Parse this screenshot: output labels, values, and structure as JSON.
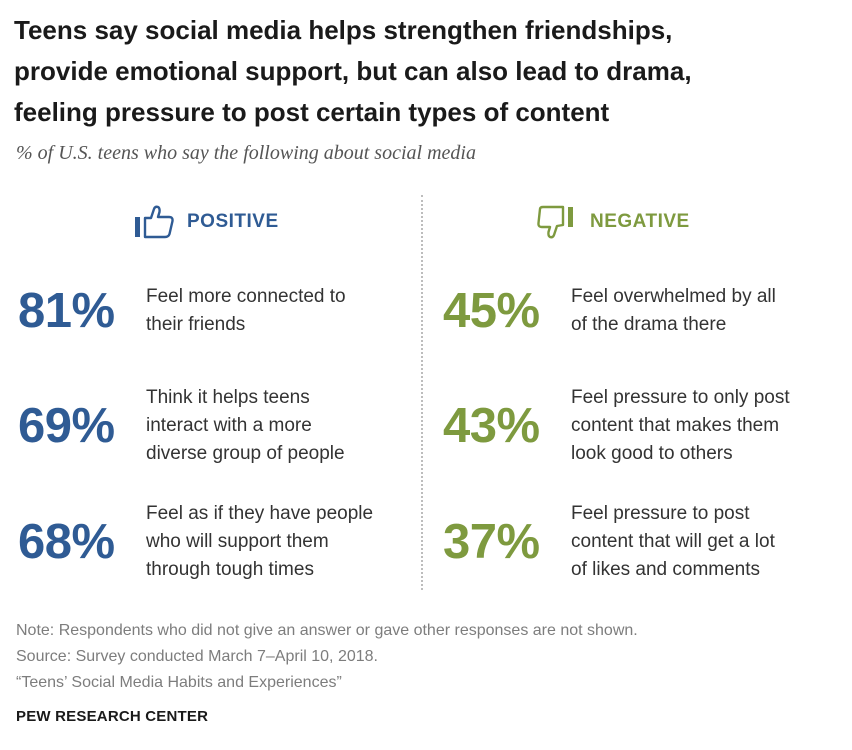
{
  "title": [
    "Teens say social media helps strengthen friendships,",
    "provide emotional support, but can also lead to drama,",
    "feeling pressure to post certain types of content"
  ],
  "subtitle": "% of U.S. teens who say the following about social media",
  "positive": {
    "label": "POSITIVE",
    "icon": "thumbs-up-icon",
    "color": "#2f5b94",
    "items": [
      {
        "value": "81%",
        "lines": [
          "Feel more connected to",
          "their friends"
        ]
      },
      {
        "value": "69%",
        "lines": [
          "Think it helps teens",
          "interact with a more",
          "diverse group of people"
        ]
      },
      {
        "value": "68%",
        "lines": [
          "Feel as if they have people",
          "who will support them",
          "through tough times"
        ]
      }
    ]
  },
  "negative": {
    "label": "NEGATIVE",
    "icon": "thumbs-down-icon",
    "color": "#7e9a3f",
    "items": [
      {
        "value": "45%",
        "lines": [
          "Feel overwhelmed by all",
          "of the drama there"
        ]
      },
      {
        "value": "43%",
        "lines": [
          "Feel pressure to only post",
          "content that makes them",
          "look good to others"
        ]
      },
      {
        "value": "37%",
        "lines": [
          "Feel pressure to post",
          "content that will get a lot",
          "of likes and comments"
        ]
      }
    ]
  },
  "notes": [
    "Note: Respondents who did not give an answer or gave other responses are not shown.",
    "Source: Survey conducted March 7–April 10, 2018.",
    "“Teens’ Social Media Habits and Experiences”"
  ],
  "brand": "PEW RESEARCH CENTER",
  "chart_data": {
    "type": "table",
    "title": "Teens say social media helps strengthen friendships, provide emotional support, but can also lead to drama, feeling pressure to post certain types of content",
    "subtitle": "% of U.S. teens who say the following about social media",
    "series": [
      {
        "name": "POSITIVE",
        "categories": [
          "Feel more connected to their friends",
          "Think it helps teens interact with a more diverse group of people",
          "Feel as if they have people who will support them through tough times"
        ],
        "values": [
          81,
          69,
          68
        ]
      },
      {
        "name": "NEGATIVE",
        "categories": [
          "Feel overwhelmed by all of the drama there",
          "Feel pressure to only post content that makes them look good to others",
          "Feel pressure to post content that will get a lot of likes and comments"
        ],
        "values": [
          45,
          43,
          37
        ]
      }
    ],
    "unit": "%"
  }
}
